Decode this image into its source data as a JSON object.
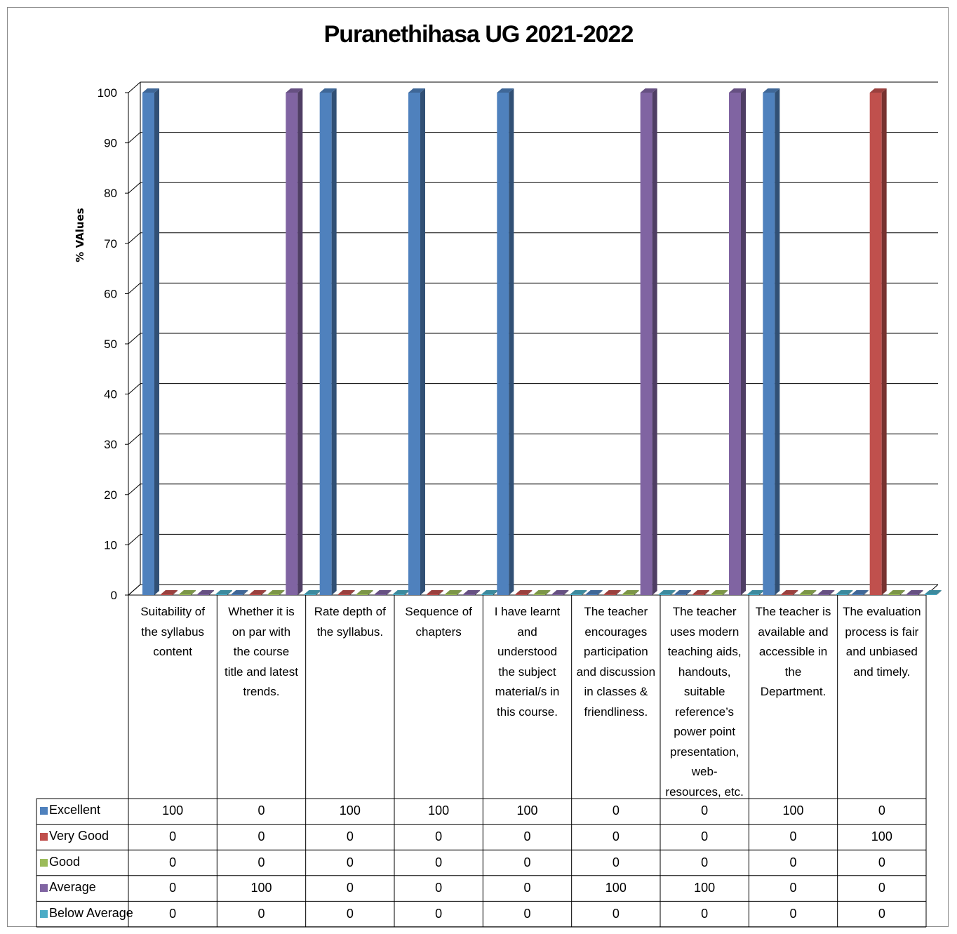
{
  "chart_data": {
    "type": "bar",
    "title": "Puranethihasa UG 2021-2022",
    "ylabel": "% VAlues",
    "xlabel": "",
    "ylim": [
      0,
      100
    ],
    "yticks": [
      0,
      10,
      20,
      30,
      40,
      50,
      60,
      70,
      80,
      90,
      100
    ],
    "grid": true,
    "legend_placement": "data-table-left",
    "categories": [
      "Suitability of the syllabus content",
      "Whether it is on par with the course title and latest trends.",
      "Rate depth of the syllabus.",
      "Sequence of chapters",
      "I have learnt and understood the subject material/s in this course.",
      "The teacher encourages participation and discussion in classes & friendliness.",
      "The teacher uses modern teaching aids, handouts, suitable reference’s power point presentation, web-resources, etc.",
      "The teacher is available and accessible in the Department.",
      "The evaluation process is fair and unbiased and timely."
    ],
    "series": [
      {
        "name": "Excellent",
        "color": "#4F81BD",
        "values": [
          100,
          0,
          100,
          100,
          100,
          0,
          0,
          100,
          0
        ]
      },
      {
        "name": "Very Good",
        "color": "#C0504D",
        "values": [
          0,
          0,
          0,
          0,
          0,
          0,
          0,
          0,
          100
        ]
      },
      {
        "name": "Good",
        "color": "#9BBB59",
        "values": [
          0,
          0,
          0,
          0,
          0,
          0,
          0,
          0,
          0
        ]
      },
      {
        "name": "Average",
        "color": "#8064A2",
        "values": [
          0,
          100,
          0,
          0,
          0,
          100,
          100,
          0,
          0
        ]
      },
      {
        "name": "Below Average",
        "color": "#4BACC6",
        "values": [
          0,
          0,
          0,
          0,
          0,
          0,
          0,
          0,
          0
        ]
      }
    ],
    "category_lines": [
      [
        "Suitability of",
        "the syllabus",
        "content"
      ],
      [
        "Whether it is",
        "on par with",
        "the course",
        "title and latest",
        "trends."
      ],
      [
        "Rate depth of",
        "the syllabus."
      ],
      [
        "Sequence of",
        "chapters"
      ],
      [
        "I have learnt",
        "and",
        "understood",
        "the subject",
        "material/s in",
        "this course."
      ],
      [
        "The teacher",
        "encourages",
        "participation",
        "and discussion",
        "in classes &",
        "friendliness."
      ],
      [
        "The teacher",
        "uses modern",
        "teaching aids,",
        "handouts,",
        "suitable",
        "reference’s",
        "power point",
        "presentation,",
        "web-",
        "resources, etc."
      ],
      [
        "The teacher is",
        "available and",
        "accessible in",
        "the",
        "Department."
      ],
      [
        "The evaluation",
        "process is fair",
        "and unbiased",
        "and timely."
      ]
    ]
  }
}
